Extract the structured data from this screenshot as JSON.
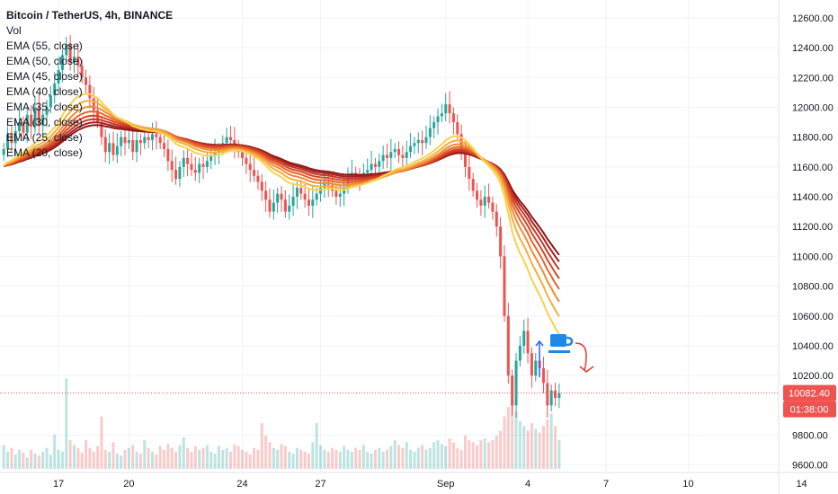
{
  "chart_data": {
    "type": "candlestick",
    "title": "Bitcoin / TetherUS, 4h, BINANCE",
    "indicators": [
      "Vol",
      "EMA (55, close)",
      "EMA (50, close)",
      "EMA (45, close)",
      "EMA (40, close)",
      "EMA (35, close)",
      "EMA (30, close)",
      "EMA (25, close)",
      "EMA (20, close)"
    ],
    "y_ticks": [
      12600,
      12400,
      12200,
      12000,
      11800,
      11600,
      11400,
      11200,
      11000,
      10800,
      10600,
      10400,
      10200,
      9800,
      9600
    ],
    "y_tick_labels": [
      "12600.00",
      "12400.00",
      "12200.00",
      "12000.00",
      "11800.00",
      "11600.00",
      "11400.00",
      "11200.00",
      "11000.00",
      "10800.00",
      "10600.00",
      "10400.00",
      "10200.00",
      "9800.00",
      "9600.00"
    ],
    "ylim": [
      9550,
      12720
    ],
    "x_ticks": [
      {
        "label": "17",
        "bar": 14
      },
      {
        "label": "20",
        "bar": 32
      },
      {
        "label": "24",
        "bar": 61
      },
      {
        "label": "27",
        "bar": 81
      },
      {
        "label": "Sep",
        "bar": 113
      },
      {
        "label": "4",
        "bar": 134
      },
      {
        "label": "7",
        "bar": 154
      },
      {
        "label": "10",
        "bar": 175
      },
      {
        "label": "14",
        "bar": 204
      }
    ],
    "last_price": 10082.4,
    "last_price_label": "10082.40",
    "countdown": "01:38:00",
    "closes": [
      11720,
      11820,
      11760,
      11840,
      11900,
      11830,
      11950,
      11870,
      12000,
      11880,
      11950,
      12000,
      12080,
      12160,
      12250,
      12350,
      12420,
      12300,
      12340,
      12280,
      12200,
      12150,
      12060,
      11980,
      11900,
      11800,
      11700,
      11760,
      11680,
      11740,
      11800,
      11760,
      11780,
      11700,
      11780,
      11760,
      11800,
      11780,
      11820,
      11800,
      11760,
      11720,
      11640,
      11580,
      11520,
      11600,
      11660,
      11620,
      11580,
      11560,
      11620,
      11600,
      11640,
      11680,
      11700,
      11720,
      11760,
      11800,
      11780,
      11740,
      11700,
      11660,
      11620,
      11580,
      11540,
      11500,
      11440,
      11380,
      11300,
      11360,
      11420,
      11380,
      11300,
      11340,
      11400,
      11460,
      11420,
      11380,
      11340,
      11380,
      11420,
      11460,
      11500,
      11480,
      11440,
      11400,
      11420,
      11460,
      11520,
      11560,
      11540,
      11520,
      11560,
      11580,
      11620,
      11600,
      11640,
      11680,
      11660,
      11700,
      11720,
      11680,
      11660,
      11700,
      11740,
      11760,
      11780,
      11760,
      11800,
      11860,
      11900,
      11940,
      11960,
      12020,
      11960,
      11900,
      11820,
      11700,
      11600,
      11520,
      11440,
      11380,
      11340,
      11400,
      11360,
      11300,
      11200,
      11000,
      10600,
      10200,
      10000,
      10300,
      10400,
      10500,
      10350,
      10200,
      10300,
      10250,
      10150,
      10000,
      10100,
      10050,
      10082.4
    ],
    "volumes": [
      0.25,
      0.18,
      0.22,
      0.15,
      0.2,
      0.17,
      0.12,
      0.2,
      0.16,
      0.14,
      0.18,
      0.22,
      0.15,
      0.36,
      0.2,
      0.18,
      0.95,
      0.3,
      0.25,
      0.22,
      0.17,
      0.3,
      0.22,
      0.18,
      0.24,
      0.55,
      0.2,
      0.18,
      0.28,
      0.16,
      0.14,
      0.2,
      0.22,
      0.25,
      0.18,
      0.16,
      0.3,
      0.22,
      0.18,
      0.15,
      0.24,
      0.2,
      0.26,
      0.22,
      0.18,
      0.25,
      0.33,
      0.22,
      0.18,
      0.24,
      0.2,
      0.22,
      0.25,
      0.18,
      0.16,
      0.24,
      0.2,
      0.22,
      0.18,
      0.26,
      0.24,
      0.2,
      0.18,
      0.15,
      0.22,
      0.2,
      0.48,
      0.35,
      0.28,
      0.22,
      0.2,
      0.26,
      0.24,
      0.18,
      0.16,
      0.22,
      0.2,
      0.18,
      0.16,
      0.28,
      0.48,
      0.25,
      0.2,
      0.18,
      0.22,
      0.2,
      0.18,
      0.24,
      0.2,
      0.18,
      0.22,
      0.2,
      0.25,
      0.18,
      0.16,
      0.2,
      0.22,
      0.18,
      0.2,
      0.24,
      0.3,
      0.25,
      0.22,
      0.28,
      0.2,
      0.18,
      0.22,
      0.25,
      0.2,
      0.22,
      0.28,
      0.3,
      0.26,
      0.24,
      0.32,
      0.28,
      0.22,
      0.2,
      0.35,
      0.3,
      0.28,
      0.25,
      0.3,
      0.32,
      0.28,
      0.3,
      0.35,
      0.4,
      0.55,
      0.65,
      0.7,
      0.6,
      0.5,
      0.45,
      0.4,
      0.48,
      0.42,
      0.38,
      0.45,
      0.52,
      0.58,
      0.45,
      0.3
    ]
  },
  "ema_colors": [
    "#8b1a1a",
    "#a8201a",
    "#c0392b",
    "#d9461f",
    "#e8622a",
    "#f08a34",
    "#f5ae3e",
    "#f8d24c"
  ],
  "up_color": "#26a69a",
  "down_color": "#ef5350",
  "annotation_icons": [
    "up-arrow-icon",
    "coffee-cup-icon",
    "curved-down-arrow-icon"
  ]
}
